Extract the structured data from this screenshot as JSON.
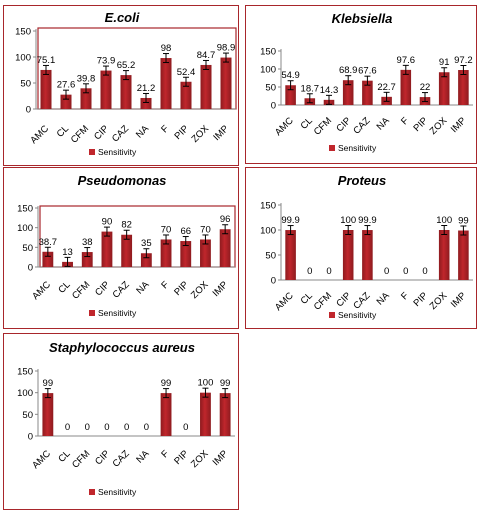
{
  "chart_data": [
    {
      "type": "bar",
      "title": "E.coli",
      "categories": [
        "AMC",
        "CL",
        "CFM",
        "CIP",
        "CAZ",
        "NA",
        "F",
        "PIP",
        "ZOX",
        "IMP"
      ],
      "series": [
        {
          "name": "Sensitivity",
          "values": [
            75.1,
            27.6,
            39.8,
            73.9,
            65.2,
            21.2,
            98,
            52.4,
            84.7,
            98.9
          ]
        }
      ],
      "value_labels": [
        "75.1",
        "27.6",
        "39.8",
        "73.9",
        "65.2",
        "21.2",
        "98",
        "52.4",
        "84.7",
        "98.9"
      ],
      "yticks": [
        "0",
        "50",
        "100",
        "150"
      ],
      "ylim": [
        0,
        150
      ],
      "has_error_bars": true,
      "legend_position": "bottom",
      "colors": {
        "bar": "#c0262c"
      }
    },
    {
      "type": "bar",
      "title": "Klebsiella",
      "categories": [
        "AMC",
        "CL",
        "CFM",
        "CIP",
        "CAZ",
        "NA",
        "F",
        "PIP",
        "ZOX",
        "IMP"
      ],
      "series": [
        {
          "name": "Sensitivity",
          "values": [
            54.9,
            18.7,
            14.3,
            68.9,
            67.6,
            22.7,
            97.6,
            22,
            91,
            97.2
          ]
        }
      ],
      "value_labels": [
        "54.9",
        "18.7",
        "14.3",
        "68.9",
        "67.6",
        "22.7",
        "97.6",
        "22",
        "91",
        "97.2"
      ],
      "yticks": [
        "0",
        "50",
        "100",
        "150"
      ],
      "ylim": [
        0,
        150
      ],
      "has_error_bars": true,
      "legend_position": "bottom",
      "colors": {
        "bar": "#c0262c"
      }
    },
    {
      "type": "bar",
      "title": "Pseudomonas",
      "categories": [
        "AMC",
        "CL",
        "CFM",
        "CIP",
        "CAZ",
        "NA",
        "F",
        "PIP",
        "ZOX",
        "IMP"
      ],
      "series": [
        {
          "name": "Sensitivity",
          "values": [
            38.7,
            13,
            38,
            90,
            82,
            35,
            70,
            66,
            70,
            96
          ]
        }
      ],
      "value_labels": [
        "38.7",
        "13",
        "38",
        "90",
        "82",
        "35",
        "70",
        "66",
        "70",
        "96"
      ],
      "yticks": [
        "0",
        "50",
        "100",
        "150"
      ],
      "ylim": [
        0,
        150
      ],
      "has_error_bars": true,
      "legend_position": "bottom",
      "colors": {
        "bar": "#c0262c"
      }
    },
    {
      "type": "bar",
      "title": "Proteus",
      "categories": [
        "AMC",
        "CL",
        "CFM",
        "CIP",
        "CAZ",
        "NA",
        "F",
        "PIP",
        "ZOX",
        "IMP"
      ],
      "series": [
        {
          "name": "Sensitivity",
          "values": [
            99.9,
            0,
            0,
            100,
            99.9,
            0,
            0,
            0,
            100,
            99
          ]
        }
      ],
      "value_labels": [
        "99.9",
        "0",
        "0",
        "100",
        "99.9",
        "0",
        "0",
        "0",
        "100",
        "99"
      ],
      "yticks": [
        "0",
        "50",
        "100",
        "150"
      ],
      "ylim": [
        0,
        150
      ],
      "has_error_bars": true,
      "legend_position": "bottom",
      "colors": {
        "bar": "#c0262c"
      }
    },
    {
      "type": "bar",
      "title": "Staphylococcus aureus",
      "categories": [
        "AMC",
        "CL",
        "CFM",
        "CIP",
        "CAZ",
        "NA",
        "F",
        "PIP",
        "ZOX",
        "IMP"
      ],
      "series": [
        {
          "name": "Sensitivity",
          "values": [
            99,
            0,
            0,
            0,
            0,
            0,
            99,
            0,
            100,
            99
          ]
        }
      ],
      "value_labels": [
        "99",
        "0",
        "0",
        "0",
        "0",
        "0",
        "99",
        "0",
        "100",
        "99"
      ],
      "yticks": [
        "0",
        "50",
        "100",
        "150"
      ],
      "ylim": [
        0,
        150
      ],
      "has_error_bars": true,
      "legend_position": "bottom",
      "colors": {
        "bar": "#c0262c"
      }
    }
  ]
}
